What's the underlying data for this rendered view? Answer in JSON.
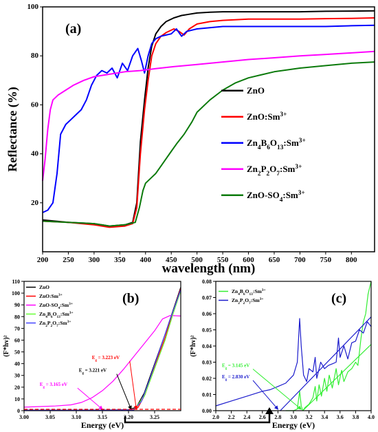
{
  "chart_data": [
    {
      "panel": "(a)",
      "type": "line",
      "xlabel": "wavelength (nm)",
      "ylabel": "Reflectance (%)",
      "xlim": [
        200,
        845
      ],
      "ylim": [
        0,
        100
      ],
      "xticks": [
        200,
        250,
        300,
        350,
        400,
        450,
        500,
        550,
        600,
        650,
        700,
        750,
        800
      ],
      "yticks": [
        20,
        40,
        60,
        80,
        100
      ],
      "legend_position": "right",
      "series": [
        {
          "name": "ZnO",
          "legend": [
            "ZnO",
            ""
          ],
          "color": "#000000",
          "x": [
            200,
            250,
            300,
            330,
            360,
            375,
            383,
            390,
            398,
            405,
            412,
            420,
            430,
            440,
            455,
            470,
            485,
            500,
            525,
            550,
            600,
            650,
            700,
            750,
            800,
            845
          ],
          "y": [
            13,
            12,
            11.5,
            10.5,
            11,
            12,
            20,
            45,
            62,
            75,
            84,
            89,
            92,
            94,
            95.5,
            96.5,
            97,
            97.5,
            97.8,
            98,
            98,
            98,
            98,
            98.2,
            98.3,
            98.4
          ]
        },
        {
          "name": "ZnO:Sm3+",
          "legend": [
            "ZnO:Sm",
            "3+"
          ],
          "color": "#ff0000",
          "x": [
            200,
            250,
            300,
            330,
            360,
            375,
            383,
            390,
            398,
            405,
            412,
            420,
            430,
            440,
            455,
            465,
            475,
            485,
            500,
            525,
            550,
            600,
            650,
            700,
            750,
            800,
            845
          ],
          "y": [
            12.5,
            12,
            11,
            10,
            10.5,
            11.5,
            18,
            40,
            58,
            70,
            80,
            85,
            88,
            89.5,
            91,
            90,
            88.5,
            91,
            93,
            94,
            94.5,
            95,
            95,
            95,
            95.2,
            95.3,
            95.5
          ]
        },
        {
          "name": "Zn4B6O13:Sm3+",
          "legend": [
            "Zn",
            "4",
            "B",
            "6",
            "O",
            "13",
            ":Sm",
            "3+"
          ],
          "color": "#0000ff",
          "x": [
            200,
            210,
            220,
            228,
            235,
            245,
            255,
            265,
            275,
            285,
            295,
            305,
            315,
            325,
            335,
            345,
            355,
            365,
            375,
            385,
            392,
            398,
            405,
            412,
            420,
            430,
            440,
            450,
            460,
            470,
            480,
            490,
            500,
            525,
            550,
            600,
            650,
            700,
            750,
            800,
            845
          ],
          "y": [
            16,
            17,
            20,
            32,
            48,
            52,
            54,
            56,
            58,
            62,
            68,
            72,
            74,
            73,
            75,
            71,
            77,
            74,
            80,
            83,
            78,
            73,
            80,
            85,
            87,
            88,
            88.5,
            89,
            91,
            88,
            90,
            90.5,
            91,
            91.5,
            92,
            92,
            92,
            92,
            92,
            92.3,
            92.5
          ]
        },
        {
          "name": "Zn2P2O7:Sm3+",
          "legend": [
            "Zn",
            "2",
            "P",
            "2",
            "O",
            "7",
            ":Sm",
            "3+"
          ],
          "color": "#ff00ff",
          "x": [
            200,
            205,
            210,
            215,
            220,
            230,
            245,
            260,
            280,
            300,
            330,
            360,
            390,
            420,
            450,
            500,
            550,
            600,
            650,
            700,
            750,
            800,
            845
          ],
          "y": [
            29,
            38,
            50,
            58,
            62,
            64,
            66,
            68,
            70,
            71.5,
            72.5,
            73.5,
            74,
            74.8,
            75.5,
            76.5,
            77.5,
            78.5,
            79.2,
            80,
            80.6,
            81.2,
            81.8
          ]
        },
        {
          "name": "ZnO-SO4:Sm3+",
          "legend": [
            "ZnO-SO",
            "4",
            ":Sm",
            "3+"
          ],
          "color": "#0b7a0b",
          "x": [
            200,
            250,
            300,
            330,
            360,
            380,
            388,
            395,
            400,
            405,
            410,
            420,
            430,
            440,
            450,
            460,
            475,
            490,
            500,
            525,
            550,
            575,
            600,
            650,
            700,
            750,
            800,
            845
          ],
          "y": [
            12.5,
            12,
            11.5,
            10.5,
            11,
            12,
            18,
            25,
            28,
            29,
            30,
            32,
            35,
            38,
            41,
            44,
            48,
            53,
            57,
            62,
            66,
            69,
            71,
            73.5,
            75,
            76,
            77,
            77.5
          ]
        }
      ]
    },
    {
      "panel": "(b)",
      "type": "line",
      "xlabel": "Energy (eV)",
      "ylabel": "(F*hv)²",
      "xlim": [
        3.0,
        3.3
      ],
      "ylim": [
        0,
        110
      ],
      "xticks": [
        3.0,
        3.05,
        3.1,
        3.15,
        3.2,
        3.25
      ],
      "xtick_labels": [
        "3.00",
        "3.05",
        "3.10",
        "3.15",
        "3.20",
        "3.25"
      ],
      "yticks": [
        0,
        10,
        20,
        30,
        40,
        50,
        60,
        70,
        80,
        90,
        100,
        110
      ],
      "legend_position": "top-left",
      "series": [
        {
          "name": "ZnO",
          "legend": [
            "ZnO",
            ""
          ],
          "color": "#000000",
          "x": [
            3.0,
            3.15,
            3.2,
            3.215,
            3.23,
            3.25,
            3.27,
            3.285,
            3.3
          ],
          "y": [
            0.5,
            0.5,
            0.8,
            3,
            15,
            40,
            65,
            85,
            105
          ]
        },
        {
          "name": "ZnO:Sm3+",
          "legend": [
            "ZnO:Sm",
            "3+"
          ],
          "color": "#ff0000",
          "x": [
            3.0,
            3.15,
            3.205,
            3.218,
            3.232,
            3.25,
            3.27,
            3.285,
            3.3
          ],
          "y": [
            0.3,
            0.3,
            0.5,
            2.5,
            14,
            38,
            62,
            84,
            104
          ]
        },
        {
          "name": "ZnO-SO4:Sm3+",
          "legend": [
            "ZnO-SO",
            "4",
            ":Sm",
            "3+"
          ],
          "color": "#ff00ff",
          "x": [
            3.0,
            3.03,
            3.06,
            3.09,
            3.11,
            3.13,
            3.15,
            3.17,
            3.19,
            3.21,
            3.23,
            3.25,
            3.265,
            3.28,
            3.3
          ],
          "y": [
            3,
            3.5,
            4,
            5,
            7,
            11,
            17,
            25,
            35,
            46,
            57,
            68,
            78,
            81,
            80.5
          ]
        },
        {
          "name": "Zn4B6O13:Sm3+",
          "legend": [
            "Zn",
            "4",
            "B",
            "6",
            "O",
            "13",
            ":Sm",
            "3+"
          ],
          "color": "#66ff33",
          "x": [
            3.0,
            3.15,
            3.21,
            3.23,
            3.25,
            3.27,
            3.285,
            3.3
          ],
          "y": [
            0.2,
            0.2,
            0.4,
            12,
            36,
            60,
            82,
            102
          ]
        },
        {
          "name": "Zn2P2O7:Sm3+",
          "legend": [
            "Zn",
            "2",
            "P",
            "2",
            "O",
            "7",
            ":Sm",
            "3+"
          ],
          "color": "#4444ff",
          "x": [
            3.0,
            3.15,
            3.21,
            3.225,
            3.24,
            3.26,
            3.28,
            3.3
          ],
          "y": [
            0.4,
            0.4,
            0.6,
            8,
            26,
            52,
            78,
            103
          ]
        }
      ],
      "annotations": [
        {
          "label": "E",
          "sub": "g",
          "value": " = 3.223 eV",
          "color": "#ff0000",
          "x": 3.13,
          "y": 44,
          "arrow_to": [
            3.215,
            0
          ]
        },
        {
          "label": "E",
          "sub": "g",
          "value": " = 3.221 eV",
          "color": "#000000",
          "x": 3.105,
          "y": 33,
          "arrow_to": [
            3.205,
            0
          ]
        },
        {
          "label": "E",
          "sub": "g",
          "value": " = 3.165 eV",
          "color": "#ff00ff",
          "x": 3.03,
          "y": 21,
          "arrow_to": [
            3.15,
            0
          ]
        }
      ]
    },
    {
      "panel": "(c)",
      "type": "line",
      "xlabel": "Energy (eV)",
      "ylabel": "(F*hv)²",
      "xlim": [
        2.0,
        4.0
      ],
      "ylim": [
        0,
        0.08
      ],
      "xticks": [
        2.0,
        2.2,
        2.4,
        2.6,
        2.8,
        3.0,
        3.2,
        3.4,
        3.6,
        3.8,
        4.0
      ],
      "xtick_labels": [
        "2.0",
        "2.2",
        "2.4",
        "2.6",
        "2.8",
        "3.0",
        "3.2",
        "3.4",
        "3.6",
        "3.8",
        "4.0"
      ],
      "yticks": [
        0,
        0.01,
        0.02,
        0.03,
        0.04,
        0.05,
        0.06,
        0.07,
        0.08
      ],
      "ytick_labels": [
        "0.00",
        "0.01",
        "0.02",
        "0.03",
        "0.04",
        "0.05",
        "0.06",
        "0.07",
        "0.08"
      ],
      "legend_position": "top-left",
      "series": [
        {
          "name": "Zn4B6O13:Sm3+",
          "legend": [
            "Zn",
            "4",
            "B",
            "6",
            "O",
            "13",
            ":Sm",
            "3+"
          ],
          "color": "#33ee33",
          "x": [
            2.9,
            3.0,
            3.05,
            3.08,
            3.1,
            3.12,
            3.15,
            3.2,
            3.25,
            3.28,
            3.3,
            3.33,
            3.36,
            3.4,
            3.43,
            3.46,
            3.5,
            3.55,
            3.58,
            3.62,
            3.65,
            3.7,
            3.75,
            3.8,
            3.83,
            3.87,
            3.9,
            3.93,
            3.96,
            4.0
          ],
          "y": [
            0.0,
            0.0,
            0.001,
            0.012,
            0.003,
            0.0,
            0.002,
            0.004,
            0.008,
            0.015,
            0.006,
            0.016,
            0.009,
            0.02,
            0.012,
            0.022,
            0.014,
            0.026,
            0.016,
            0.025,
            0.018,
            0.024,
            0.026,
            0.03,
            0.028,
            0.045,
            0.055,
            0.06,
            0.072,
            0.08
          ]
        },
        {
          "name": "Zn2P2O7:Sm3+",
          "legend": [
            "Zn",
            "2",
            "P",
            "2",
            "O",
            "7",
            ":Sm",
            "3+"
          ],
          "color": "#1a1acc",
          "x": [
            2.0,
            2.2,
            2.4,
            2.6,
            2.7,
            2.8,
            2.9,
            3.0,
            3.05,
            3.08,
            3.1,
            3.13,
            3.17,
            3.2,
            3.25,
            3.28,
            3.3,
            3.35,
            3.4,
            3.45,
            3.5,
            3.55,
            3.58,
            3.6,
            3.65,
            3.7,
            3.75,
            3.8,
            3.85,
            3.9,
            3.95,
            4.0
          ],
          "y": [
            0.003,
            0.006,
            0.009,
            0.012,
            0.013,
            0.015,
            0.017,
            0.022,
            0.03,
            0.057,
            0.04,
            0.022,
            0.018,
            0.026,
            0.024,
            0.033,
            0.02,
            0.03,
            0.026,
            0.028,
            0.029,
            0.03,
            0.045,
            0.033,
            0.04,
            0.032,
            0.042,
            0.043,
            0.05,
            0.048,
            0.055,
            0.052
          ]
        }
      ],
      "fit_lines": [
        {
          "color": "#33ee33",
          "x": [
            3.12,
            4.0
          ],
          "y": [
            0.0,
            0.041
          ]
        },
        {
          "color": "#1a1acc",
          "x": [
            2.83,
            4.0
          ],
          "y": [
            0.0,
            0.058
          ]
        }
      ],
      "annotations": [
        {
          "label": "E",
          "sub": "g",
          "value": " = 3.145 eV",
          "color": "#33ee33",
          "x": 2.08,
          "y": 0.027,
          "arrow_to": [
            3.1,
            0.0
          ]
        },
        {
          "label": "E",
          "sub": "g",
          "value": " = 2.830 eV",
          "color": "#1a1acc",
          "x": 2.08,
          "y": 0.02,
          "arrow_to": [
            2.8,
            0.0
          ]
        }
      ]
    }
  ]
}
